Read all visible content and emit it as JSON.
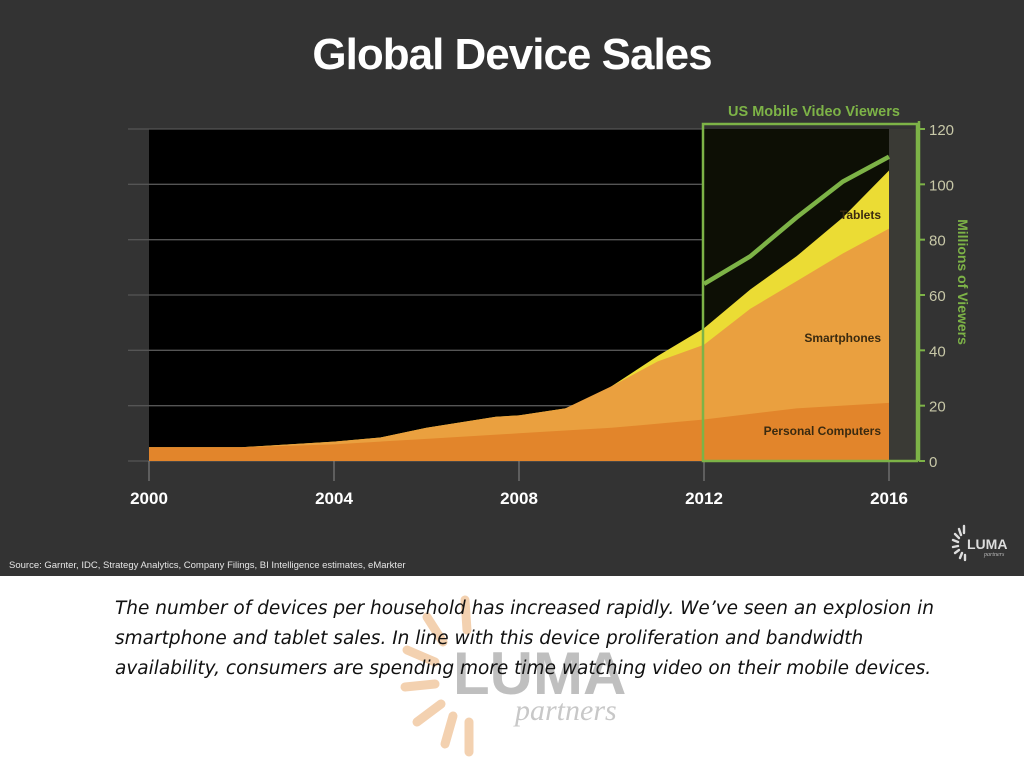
{
  "slide": {
    "title": "Global Device Sales",
    "source": "Source: Garnter, IDC, Strategy Analytics, Company Filings, BI Intelligence estimates, eMarkter",
    "logo": {
      "name": "LUMA",
      "sub": "partners"
    },
    "caption": "The number of devices per household has increased rapidly. We’ve seen an explosion in smartphone and tablet sales. In line with this device proliferation and bandwidth availability, consumers are spending more time watching video on their mobile devices.",
    "watermark": {
      "name": "LUMA",
      "sub": "partners"
    }
  },
  "chart_data": {
    "type": "area",
    "title": "Global Device Sales",
    "xlabel": "",
    "ylabel": "Millions of Viewers",
    "xlim": [
      2000,
      2016
    ],
    "ylim": [
      0,
      120
    ],
    "x_ticks": [
      2000,
      2004,
      2008,
      2012,
      2016
    ],
    "x_tick_labels": [
      "2000",
      "2004",
      "2008",
      "2012",
      "2016"
    ],
    "y_ticks": [
      0,
      20,
      40,
      60,
      80,
      100,
      120
    ],
    "y_tick_labels": [
      "0",
      "20",
      "40",
      "60",
      "80",
      "100",
      "120"
    ],
    "grid": true,
    "stacked": true,
    "series": [
      {
        "name": "Personal Computers",
        "color": "#e2852b",
        "x": [
          2000,
          2002,
          2004,
          2005,
          2006,
          2008,
          2010,
          2012,
          2014,
          2016
        ],
        "top": [
          5,
          5,
          6,
          7,
          8,
          10,
          12,
          15,
          19,
          21
        ]
      },
      {
        "name": "Smartphones",
        "color": "#eaa03f",
        "x": [
          2000,
          2002,
          2004,
          2005,
          2006,
          2007.5,
          2008,
          2009,
          2010,
          2011,
          2012,
          2013,
          2014,
          2015,
          2016
        ],
        "top": [
          5,
          5,
          7,
          8.5,
          12,
          16,
          16.5,
          19,
          27,
          36,
          42,
          55,
          65,
          75,
          84
        ]
      },
      {
        "name": "Tablets",
        "color": "#ebdc34",
        "x": [
          2000,
          2002,
          2004,
          2005,
          2006,
          2007.5,
          2008,
          2009,
          2009.5,
          2010,
          2011,
          2012,
          2013,
          2014,
          2015,
          2016
        ],
        "top": [
          5,
          5,
          7,
          8.5,
          12,
          16,
          16.5,
          19,
          21,
          27,
          38,
          48,
          62,
          74,
          88,
          105
        ]
      }
    ],
    "overlay": {
      "title": "US Mobile Video Viewers",
      "color": "#7db347",
      "x_range": [
        2012,
        2016
      ],
      "line": {
        "name": "US Mobile Video Viewers",
        "x": [
          2012,
          2013,
          2014,
          2015,
          2016
        ],
        "y": [
          64,
          74,
          88,
          101,
          110
        ]
      }
    },
    "annotations": [
      "Tablets",
      "Smartphones",
      "Personal Computers"
    ]
  }
}
